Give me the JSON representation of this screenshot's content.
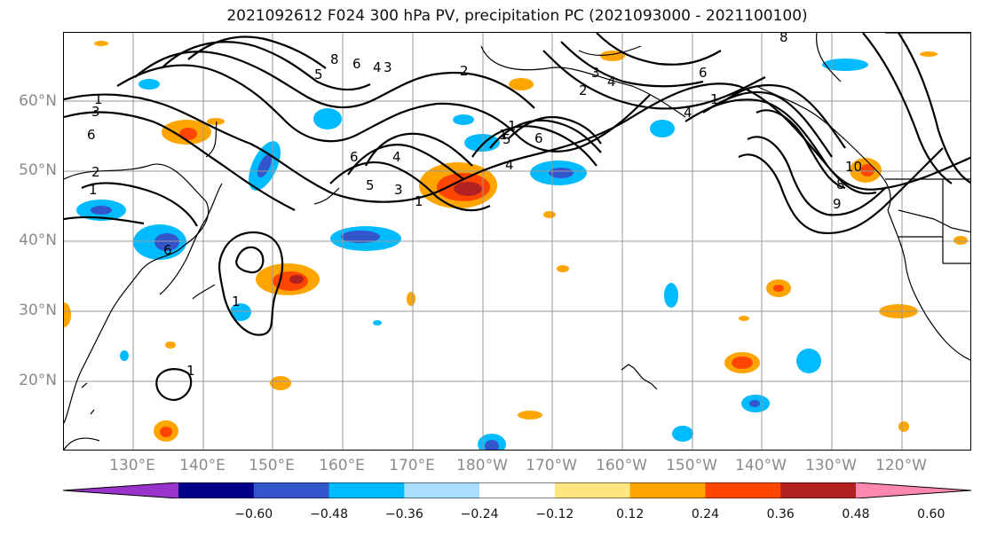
{
  "title": "2021092612 F024 300 hPa PV, precipitation PC (2021093000 - 2021100100)",
  "lat_labels": [
    "60°N",
    "50°N",
    "40°N",
    "30°N",
    "20°N"
  ],
  "lon_labels": [
    "130°E",
    "140°E",
    "150°E",
    "160°E",
    "170°E",
    "180°W",
    "170°W",
    "160°W",
    "150°W",
    "140°W",
    "130°W",
    "120°W"
  ],
  "colorbar": {
    "colors": [
      "#9933cc",
      "#000088",
      "#3355cc",
      "#00bbff",
      "#aaddff",
      "#ffffff",
      "#ffe680",
      "#ffa500",
      "#ff4500",
      "#b22222",
      "#ff88b0"
    ],
    "ticks": [
      "−0.60",
      "−0.48",
      "−0.36",
      "−0.24",
      "−0.12",
      "0.12",
      "0.24",
      "0.36",
      "0.48",
      "0.60"
    ]
  },
  "contour_labels": [
    "1",
    "1",
    "6",
    "3",
    "2",
    "2",
    "1",
    "1",
    "5",
    "8",
    "6",
    "4",
    "3",
    "2",
    "6",
    "4",
    "5",
    "3",
    "1",
    "5",
    "6",
    "4",
    "3",
    "4",
    "6",
    "4",
    "1",
    "10",
    "8",
    "9",
    "1",
    "6",
    "8",
    "1"
  ]
}
